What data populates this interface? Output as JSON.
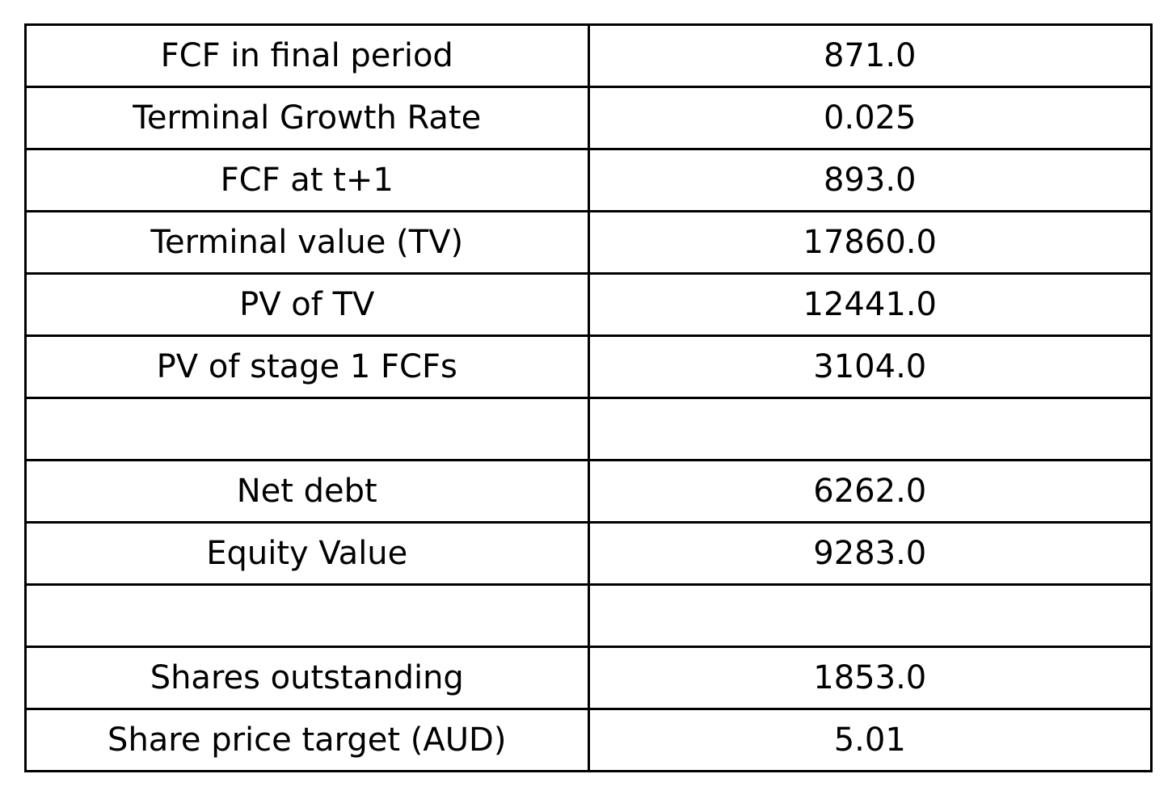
{
  "chart_data": {
    "type": "table",
    "rows": [
      {
        "label": "FCF in final period",
        "value": "871.0"
      },
      {
        "label": "Terminal Growth Rate",
        "value": "0.025"
      },
      {
        "label": "FCF at t+1",
        "value": "893.0"
      },
      {
        "label": "Terminal value (TV)",
        "value": "17860.0"
      },
      {
        "label": "PV of TV",
        "value": "12441.0"
      },
      {
        "label": "PV of stage 1 FCFs",
        "value": "3104.0"
      },
      {
        "label": "",
        "value": ""
      },
      {
        "label": "Net debt",
        "value": "6262.0"
      },
      {
        "label": "Equity Value",
        "value": "9283.0"
      },
      {
        "label": "",
        "value": ""
      },
      {
        "label": "Shares outstanding",
        "value": "1853.0"
      },
      {
        "label": "Share price target (AUD)",
        "value": "5.01"
      }
    ]
  }
}
